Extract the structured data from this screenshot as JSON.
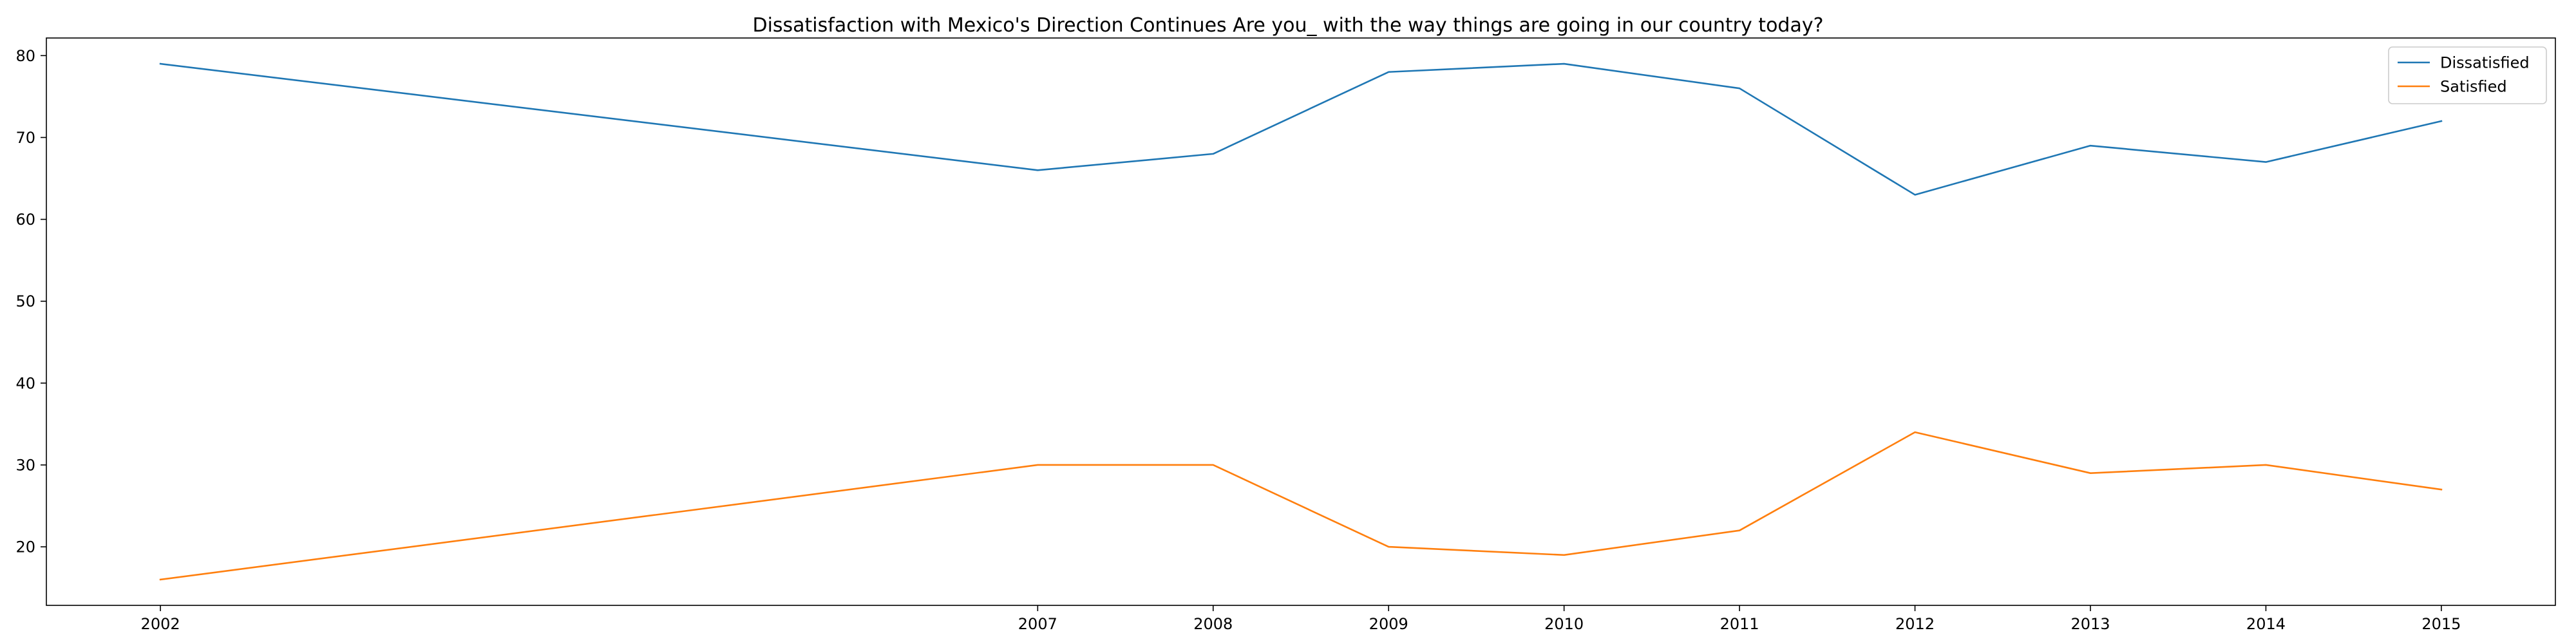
{
  "chart_data": {
    "type": "line",
    "title": "Dissatisfaction with Mexico's Direction Continues Are you_ with the way things are going in our country today?",
    "xlabel": "",
    "ylabel": "",
    "x": [
      2002,
      2007,
      2008,
      2009,
      2010,
      2011,
      2012,
      2013,
      2014,
      2015
    ],
    "x_tick_labels": [
      "2002",
      "2007",
      "2008",
      "2009",
      "2010",
      "2011",
      "2012",
      "2013",
      "2014",
      "2015"
    ],
    "xlim": [
      2001.35,
      2015.65
    ],
    "ylim": [
      12.85,
      82.15
    ],
    "y_ticks": [
      20,
      30,
      40,
      50,
      60,
      70,
      80
    ],
    "y_tick_labels": [
      "20",
      "30",
      "40",
      "50",
      "60",
      "70",
      "80"
    ],
    "grid": false,
    "legend_position": "top-right",
    "series": [
      {
        "name": "Dissatisfied",
        "color": "#1f77b4",
        "values": [
          79,
          66,
          68,
          78,
          79,
          76,
          63,
          69,
          67,
          72
        ]
      },
      {
        "name": "Satisfied",
        "color": "#ff7f0e",
        "values": [
          16,
          30,
          30,
          20,
          19,
          22,
          34,
          29,
          30,
          27
        ]
      }
    ]
  }
}
